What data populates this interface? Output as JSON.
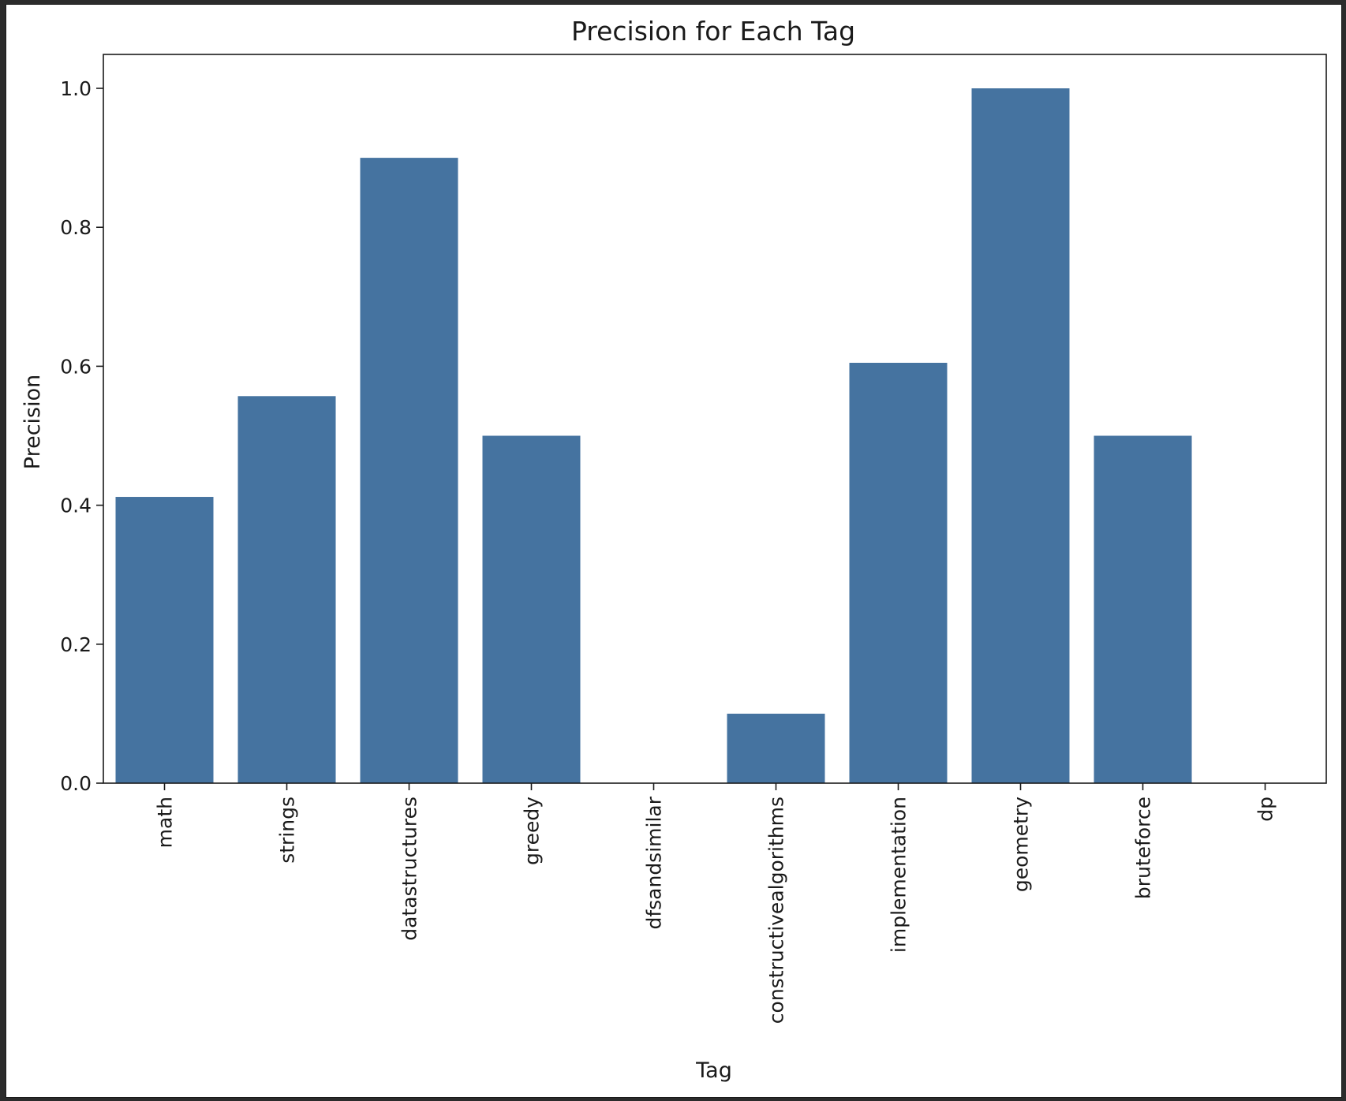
{
  "chart_data": {
    "type": "bar",
    "title": "Precision for Each Tag",
    "xlabel": "Tag",
    "ylabel": "Precision",
    "categories": [
      "math",
      "strings",
      "datastructures",
      "greedy",
      "dfsandsimilar",
      "constructivealgorithms",
      "implementation",
      "geometry",
      "bruteforce",
      "dp"
    ],
    "values": [
      0.412,
      0.557,
      0.9,
      0.5,
      0.0,
      0.1,
      0.605,
      1.0,
      0.5,
      0.0
    ],
    "ylim": [
      0,
      1.05
    ],
    "yticks": [
      0.0,
      0.2,
      0.4,
      0.6,
      0.8,
      1.0
    ],
    "ytick_labels": [
      "0.0",
      "0.2",
      "0.4",
      "0.6",
      "0.8",
      "1.0"
    ],
    "grid": false,
    "bar_color": "#4573a0"
  }
}
